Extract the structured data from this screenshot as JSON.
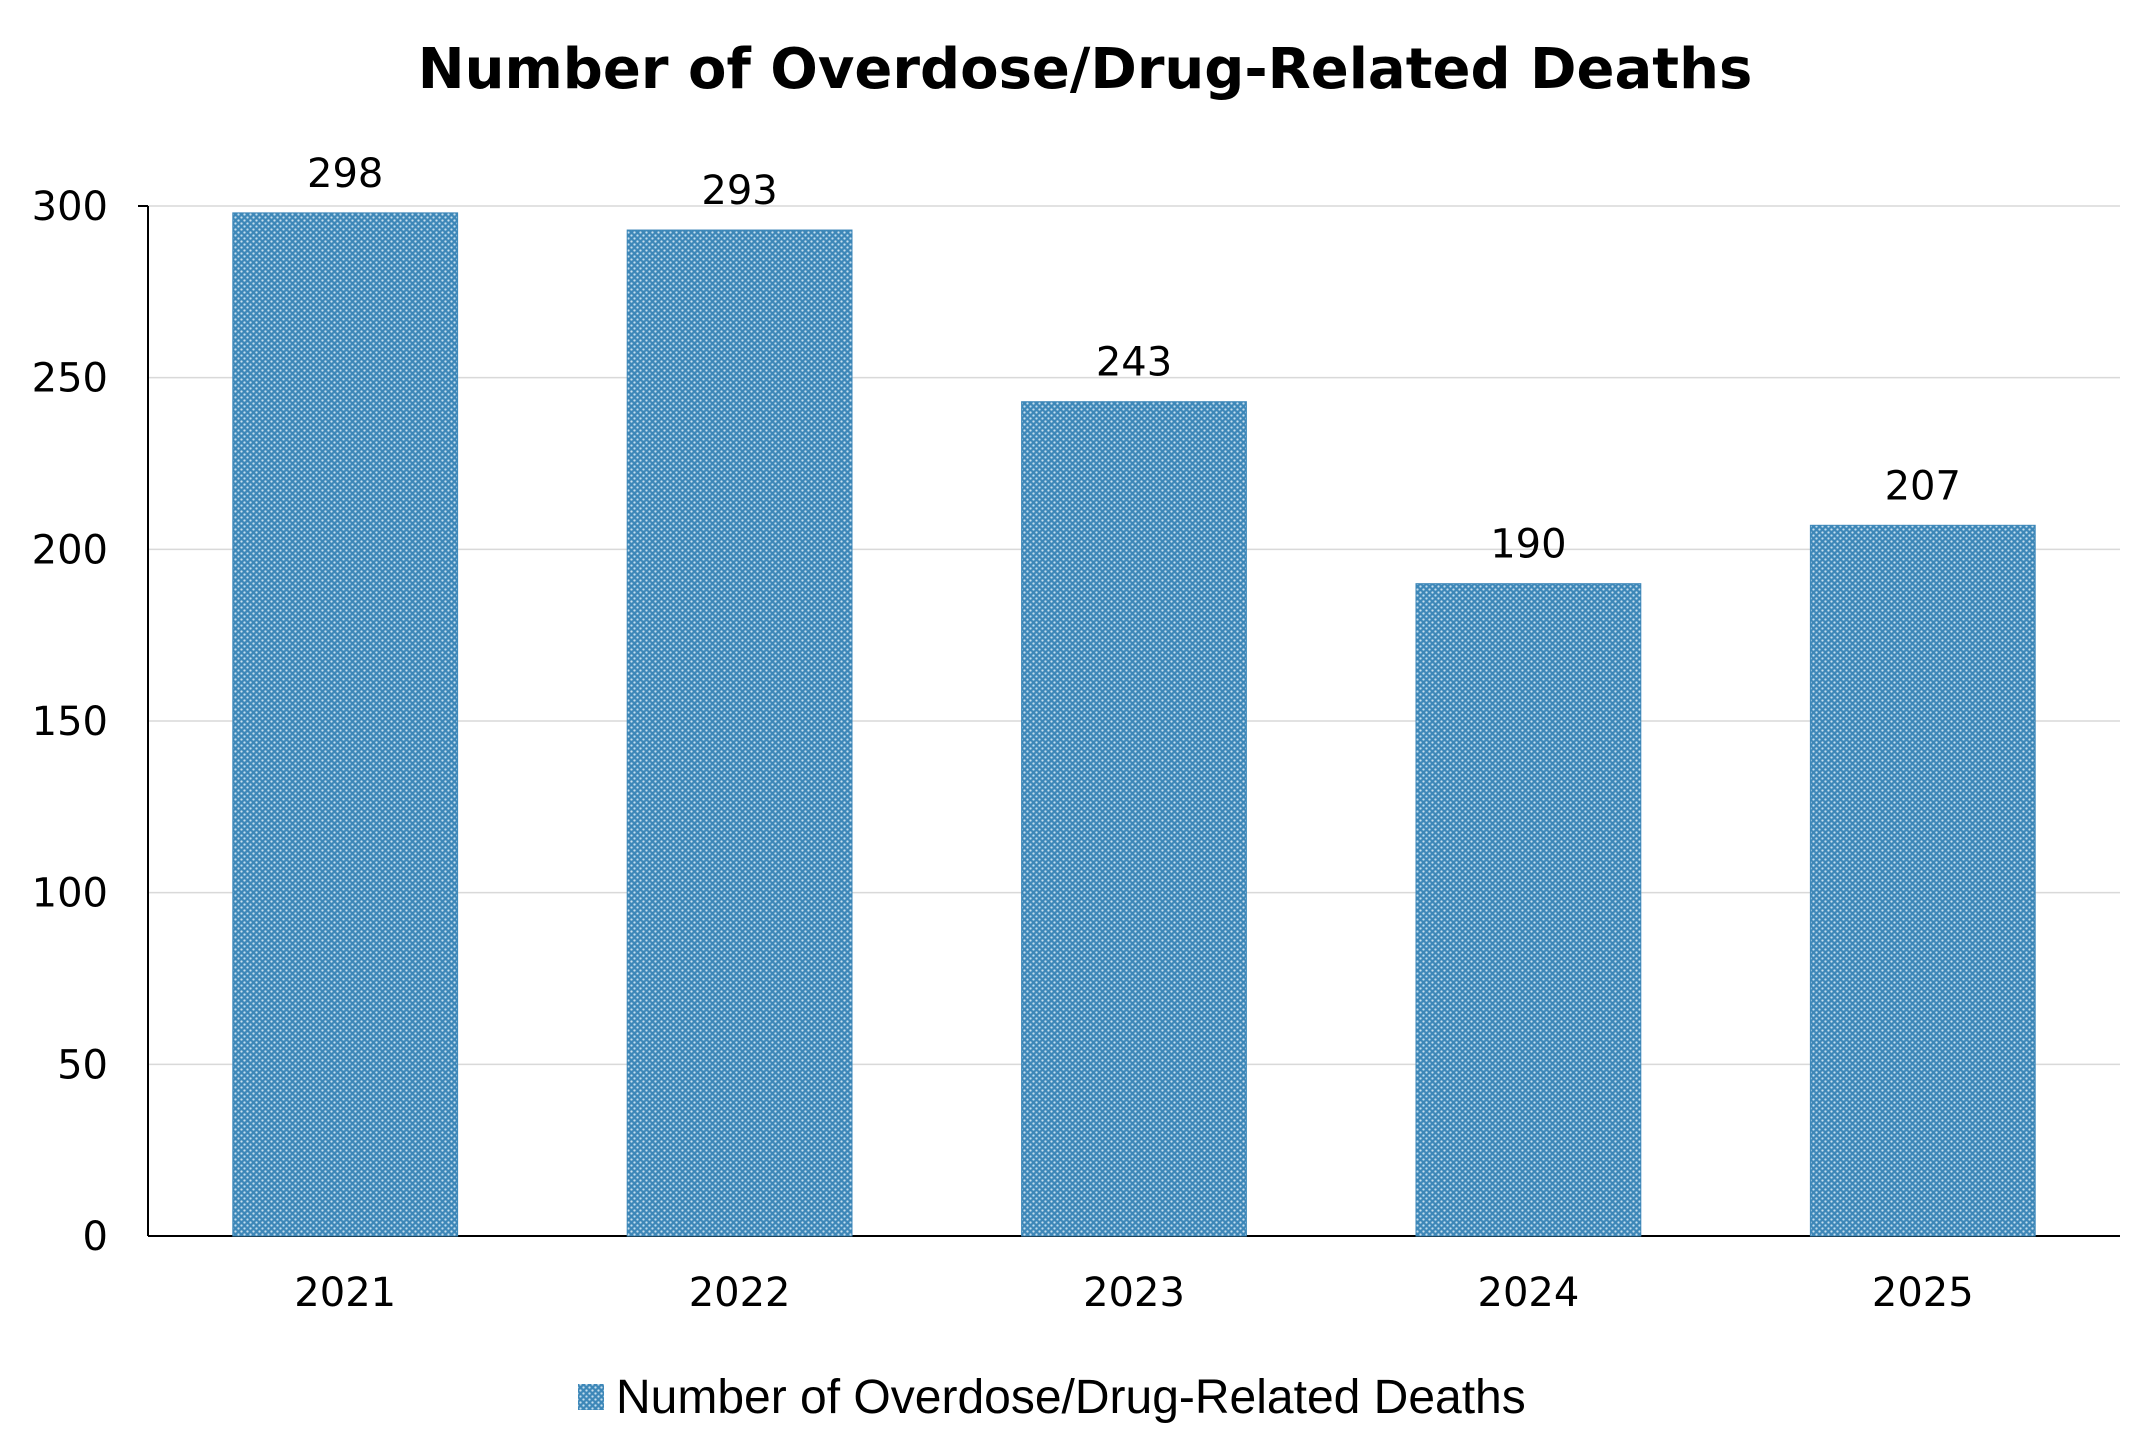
{
  "chart_data": {
    "type": "bar",
    "title": "Number of Overdose/Drug-Related Deaths",
    "categories": [
      "2021",
      "2022",
      "2023",
      "2024",
      "2025"
    ],
    "series": [
      {
        "name": "Number of Overdose/Drug-Related Deaths",
        "values": [
          298,
          293,
          243,
          190,
          207
        ],
        "color": "#3d87b8"
      }
    ],
    "ylim": [
      0,
      300
    ],
    "yticks": [
      0,
      50,
      100,
      150,
      200,
      250,
      300
    ],
    "grid": true,
    "legend_position": "bottom",
    "data_labels": true,
    "bar_pattern": "dotted"
  }
}
